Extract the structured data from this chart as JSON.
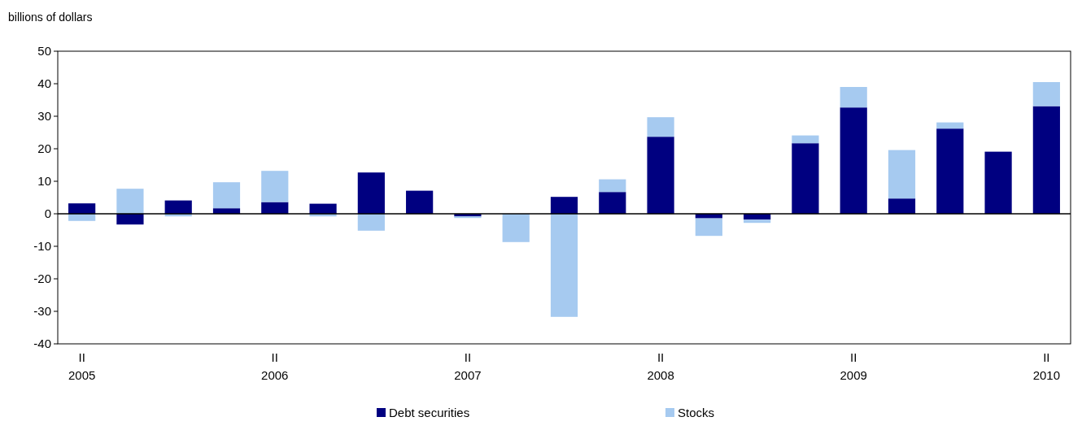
{
  "chart_data": {
    "type": "bar",
    "stacked": true,
    "ylabel": "billions of dollars",
    "categories": [
      "II\n2005",
      null,
      null,
      null,
      "II\n2006",
      null,
      null,
      null,
      "II\n2007",
      null,
      null,
      null,
      "II\n2008",
      null,
      null,
      null,
      "II\n2009",
      null,
      null,
      null,
      "II\n2010"
    ],
    "series": [
      {
        "name": "Debt securities",
        "color": "#000080",
        "values": [
          3.2,
          -3.3,
          4.1,
          1.7,
          3.6,
          3.1,
          12.7,
          7.1,
          -0.8,
          0,
          5.2,
          6.7,
          23.7,
          -1.4,
          -1.8,
          21.7,
          32.7,
          4.7,
          26.2,
          19.1,
          33.1
        ]
      },
      {
        "name": "Stocks",
        "color": "#a6caf0",
        "values": [
          -2.2,
          7.7,
          -0.8,
          8,
          9.6,
          -0.8,
          -5.2,
          0,
          -0.5,
          -8.7,
          -31.7,
          3.9,
          6,
          -5.4,
          -1,
          2.4,
          6.3,
          14.9,
          1.9,
          0,
          7.4
        ]
      }
    ],
    "ylim": [
      -40,
      50
    ],
    "yticks": [
      -40,
      -30,
      -20,
      -10,
      0,
      10,
      20,
      30,
      40,
      50
    ],
    "legend": "bottom"
  }
}
